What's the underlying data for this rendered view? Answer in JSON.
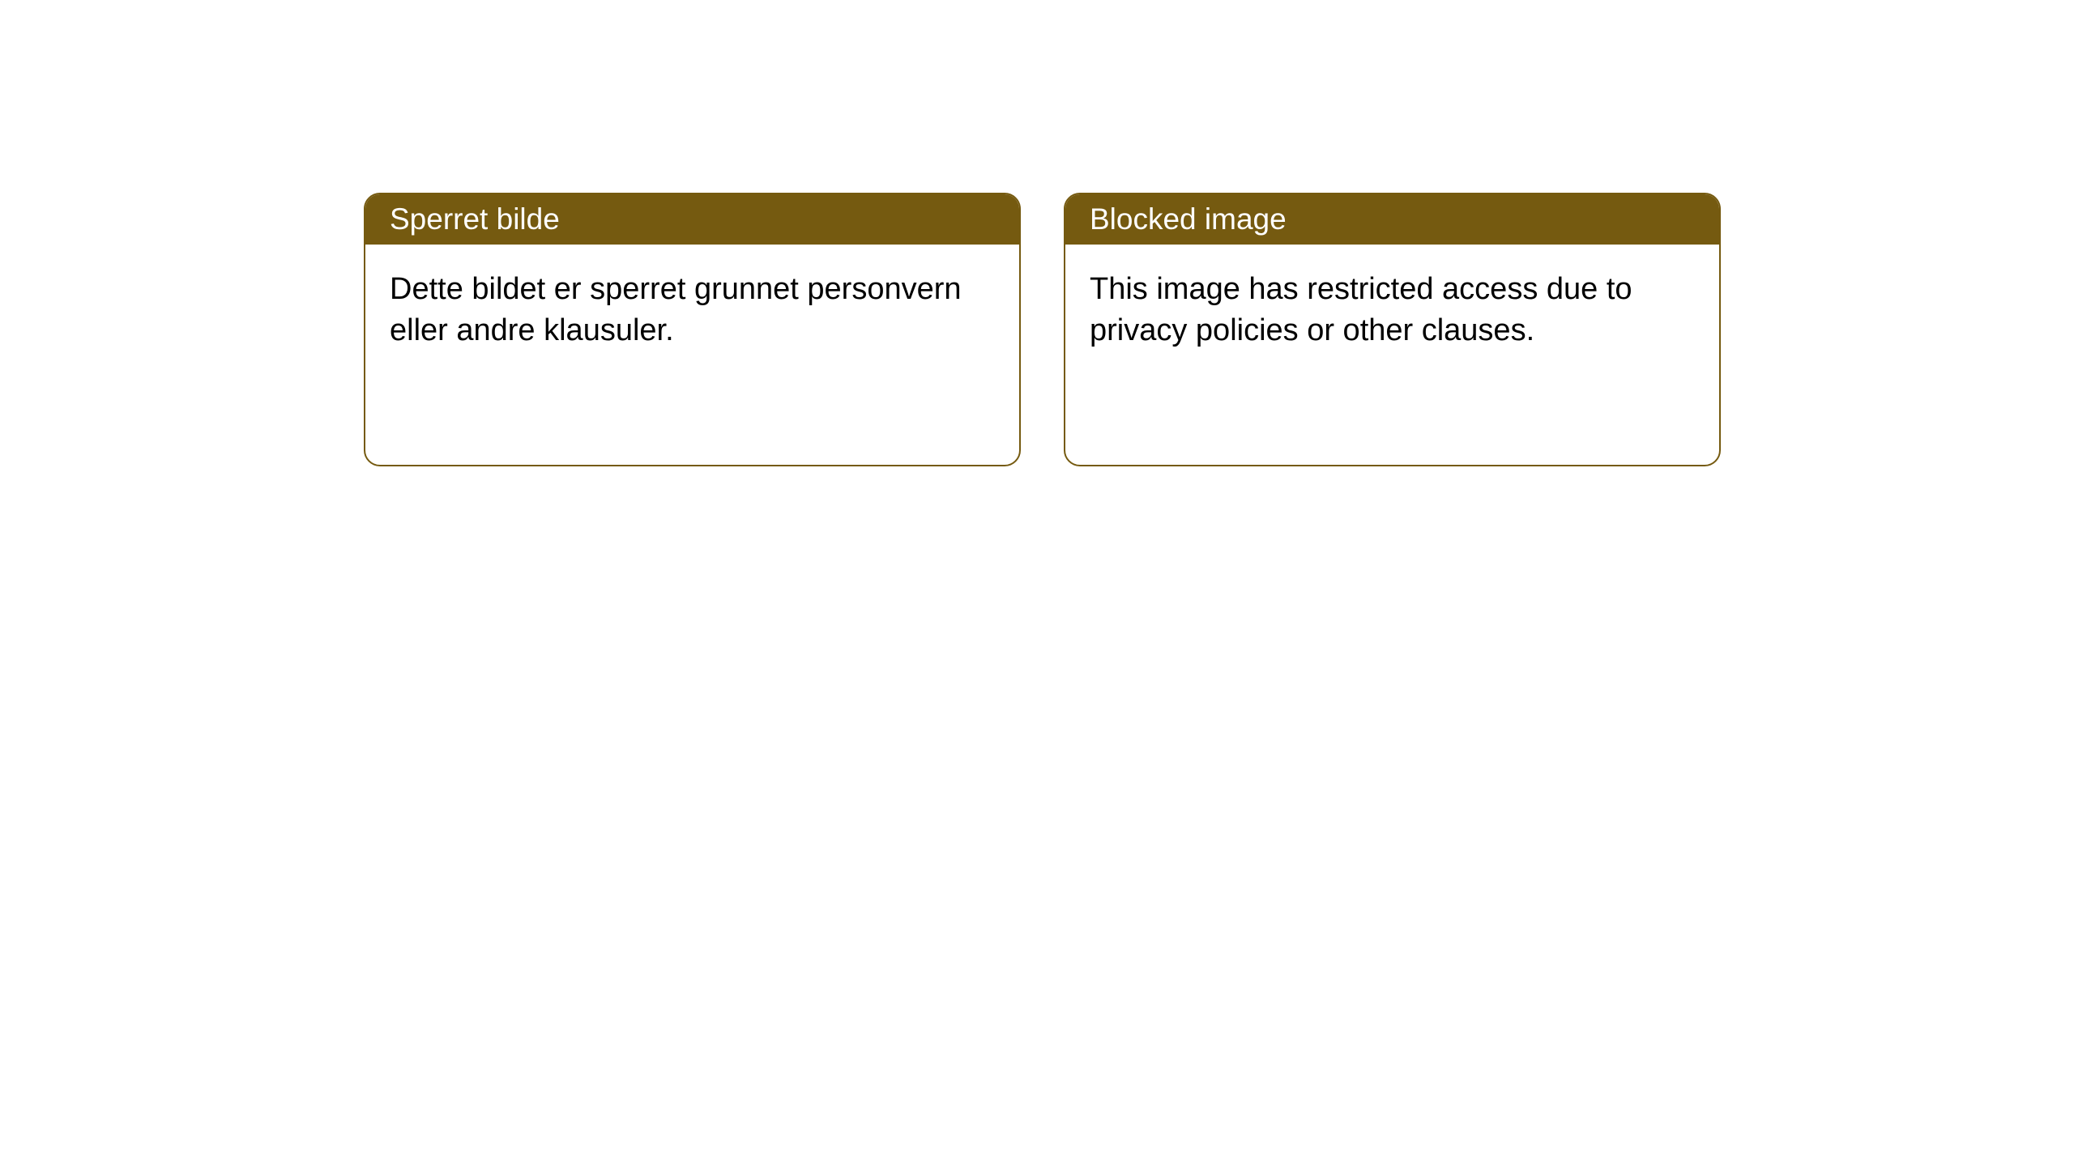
{
  "styling": {
    "header_bg_color": "#755a10",
    "header_text_color": "#ffffff",
    "border_color": "#755a10",
    "body_text_color": "#000000",
    "body_bg_color": "#ffffff",
    "border_width": "2px",
    "border_radius": "20px"
  },
  "cards": {
    "norwegian": {
      "title": "Sperret bilde",
      "body": "Dette bildet er sperret grunnet personvern eller andre klausuler."
    },
    "english": {
      "title": "Blocked image",
      "body": "This image has restricted access due to privacy policies or other clauses."
    }
  }
}
